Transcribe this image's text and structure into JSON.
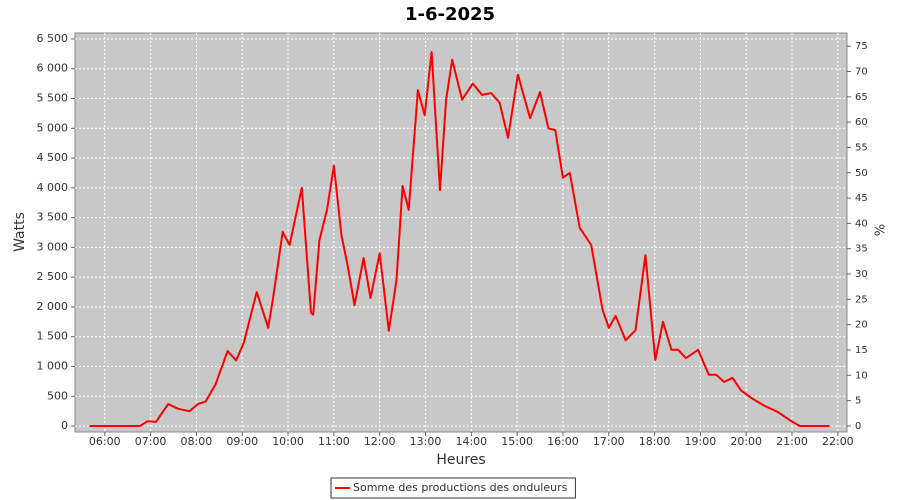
{
  "chart_data": {
    "type": "line",
    "title": "1-6-2025",
    "xlabel": "Heures",
    "ylabel": "Watts",
    "y2label": "%",
    "x": [
      "05:40",
      "06:46",
      "06:56",
      "07:07",
      "07:23",
      "07:36",
      "07:51",
      "08:02",
      "08:12",
      "08:25",
      "08:41",
      "08:52",
      "09:02",
      "09:19",
      "09:34",
      "09:40",
      "09:53",
      "10:02",
      "10:18",
      "10:30",
      "10:33",
      "10:41",
      "10:51",
      "11:00",
      "11:10",
      "11:18",
      "11:27",
      "11:39",
      "11:48",
      "12:00",
      "12:12",
      "12:22",
      "12:30",
      "12:38",
      "12:50",
      "12:59",
      "13:08",
      "13:19",
      "13:27",
      "13:35",
      "13:48",
      "14:02",
      "14:14",
      "14:26",
      "14:37",
      "14:48",
      "15:01",
      "15:17",
      "15:30",
      "15:41",
      "15:50",
      "16:00",
      "16:09",
      "16:22",
      "16:37",
      "16:52",
      "17:00",
      "17:09",
      "17:22",
      "17:35",
      "17:48",
      "18:01",
      "18:11",
      "18:22",
      "18:31",
      "18:41",
      "18:57",
      "19:11",
      "19:21",
      "19:31",
      "19:42",
      "19:53",
      "20:07",
      "20:24",
      "20:41",
      "20:57",
      "21:10",
      "21:49"
    ],
    "series": [
      {
        "name": "Somme des productions des onduleurs",
        "color": "#ff0000",
        "values": [
          0,
          0,
          80,
          70,
          370,
          290,
          250,
          370,
          410,
          700,
          1260,
          1100,
          1400,
          2250,
          1650,
          2120,
          3260,
          3040,
          4000,
          1900,
          1870,
          3120,
          3630,
          4370,
          3200,
          2700,
          2030,
          2820,
          2150,
          2900,
          1600,
          2450,
          4030,
          3630,
          5640,
          5220,
          6280,
          3960,
          5480,
          6150,
          5480,
          5750,
          5560,
          5590,
          5430,
          4840,
          5900,
          5170,
          5610,
          5000,
          4970,
          4170,
          4250,
          3330,
          3040,
          1950,
          1650,
          1850,
          1440,
          1610,
          2870,
          1110,
          1750,
          1280,
          1280,
          1140,
          1280,
          860,
          860,
          740,
          810,
          600,
          470,
          340,
          240,
          100,
          0,
          0
        ]
      }
    ],
    "xlim": [
      "05:21",
      "22:12"
    ],
    "xticks": [
      "06:00",
      "07:00",
      "08:00",
      "09:00",
      "10:00",
      "11:00",
      "12:00",
      "13:00",
      "14:00",
      "15:00",
      "16:00",
      "17:00",
      "18:00",
      "19:00",
      "20:00",
      "21:00",
      "22:00"
    ],
    "ylim": [
      -100,
      6600
    ],
    "yticks": [
      0,
      500,
      {
        "value": 1000,
        "label": "1 000"
      },
      {
        "value": 1500,
        "label": "1 500"
      },
      {
        "value": 2000,
        "label": "2 000"
      },
      {
        "value": 2500,
        "label": "2 500"
      },
      {
        "value": 3000,
        "label": "3 000"
      },
      {
        "value": 3500,
        "label": "3 500"
      },
      {
        "value": 4000,
        "label": "4 000"
      },
      {
        "value": 4500,
        "label": "4 500"
      },
      {
        "value": 5000,
        "label": "5 000"
      },
      {
        "value": 5500,
        "label": "5 500"
      },
      {
        "value": 6000,
        "label": "6 000"
      },
      {
        "value": 6500,
        "label": "6 500"
      }
    ],
    "y2lim": [
      -1.2,
      77.6
    ],
    "y2ticks": [
      0,
      5,
      10,
      15,
      20,
      25,
      30,
      35,
      40,
      45,
      50,
      55,
      60,
      65,
      70,
      75
    ],
    "grid": true,
    "plot_background": "#c8c8c8",
    "legend": "bottom"
  }
}
